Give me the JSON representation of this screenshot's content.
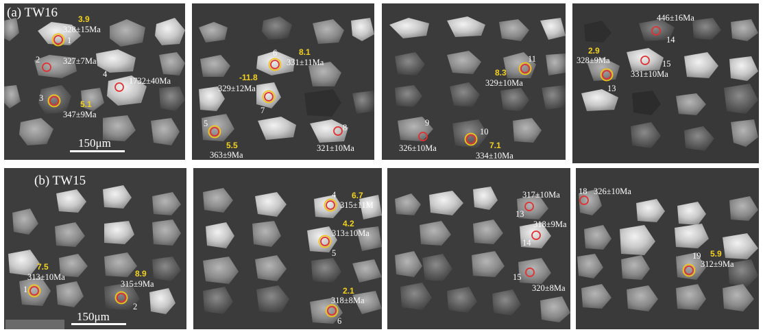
{
  "figure": {
    "panels": [
      {
        "id": "a",
        "label": "(a) TW16"
      },
      {
        "id": "b",
        "label": "(b) TW15"
      }
    ],
    "scale_bar_label": "150μm",
    "colors": {
      "panel_background": "#3b3b3b",
      "spot_outer": "#e23030",
      "spot_inner": "#f0c419",
      "ehf_text": "#f3d21f",
      "age_text": "#ffffff"
    }
  },
  "spots": [
    {
      "sample": "TW16",
      "id": "1",
      "age": "328±15Ma",
      "ehf": "3.9",
      "dual_ring": true
    },
    {
      "sample": "TW16",
      "id": "2",
      "age": "327±7Ma",
      "ehf": "",
      "dual_ring": false
    },
    {
      "sample": "TW16",
      "id": "3",
      "age": "347±9Ma",
      "ehf": "5.1",
      "dual_ring": true
    },
    {
      "sample": "TW16",
      "id": "4",
      "age": "1732±40Ma",
      "ehf": "",
      "dual_ring": false
    },
    {
      "sample": "TW16",
      "id": "5",
      "age": "363±9Ma",
      "ehf": "5.5",
      "dual_ring": true
    },
    {
      "sample": "TW16",
      "id": "6",
      "age": "331±11Ma",
      "ehf": "8.1",
      "dual_ring": true
    },
    {
      "sample": "TW16",
      "id": "7",
      "age": "329±12Ma",
      "ehf": "-11.8",
      "dual_ring": true
    },
    {
      "sample": "TW16",
      "id": "8",
      "age": "321±10Ma",
      "ehf": "",
      "dual_ring": false
    },
    {
      "sample": "TW16",
      "id": "9",
      "age": "326±10Ma",
      "ehf": "",
      "dual_ring": false
    },
    {
      "sample": "TW16",
      "id": "10",
      "age": "334±10Ma",
      "ehf": "7.1",
      "dual_ring": true
    },
    {
      "sample": "TW16",
      "id": "11",
      "age": "329±10Ma",
      "ehf": "8.3",
      "dual_ring": true
    },
    {
      "sample": "TW16",
      "id": "13",
      "age": "328±9Ma",
      "ehf": "2.9",
      "dual_ring": true
    },
    {
      "sample": "TW16",
      "id": "14",
      "age": "446±16Ma",
      "ehf": "",
      "dual_ring": false
    },
    {
      "sample": "TW16",
      "id": "15",
      "age": "331±10Ma",
      "ehf": "",
      "dual_ring": false
    },
    {
      "sample": "TW15",
      "id": "1",
      "age": "313±10Ma",
      "ehf": "7.5",
      "dual_ring": true
    },
    {
      "sample": "TW15",
      "id": "2",
      "age": "315±9Ma",
      "ehf": "8.9",
      "dual_ring": true
    },
    {
      "sample": "TW15",
      "id": "4",
      "age": "315±11M",
      "ehf": "6.7",
      "dual_ring": true
    },
    {
      "sample": "TW15",
      "id": "5",
      "age": "313±10Ma",
      "ehf": "4.2",
      "dual_ring": true
    },
    {
      "sample": "TW15",
      "id": "6",
      "age": "318±8Ma",
      "ehf": "2.1",
      "dual_ring": true
    },
    {
      "sample": "TW15",
      "id": "13",
      "age": "317±10Ma",
      "ehf": "",
      "dual_ring": false
    },
    {
      "sample": "TW15",
      "id": "14",
      "age": "318±9Ma",
      "ehf": "",
      "dual_ring": false
    },
    {
      "sample": "TW15",
      "id": "15",
      "age": "320±8Ma",
      "ehf": "",
      "dual_ring": false
    },
    {
      "sample": "TW15",
      "id": "18",
      "age": "326±10Ma",
      "ehf": "",
      "dual_ring": false
    },
    {
      "sample": "TW15",
      "id": "19",
      "age": "312±9Ma",
      "ehf": "5.9",
      "dual_ring": true
    }
  ]
}
